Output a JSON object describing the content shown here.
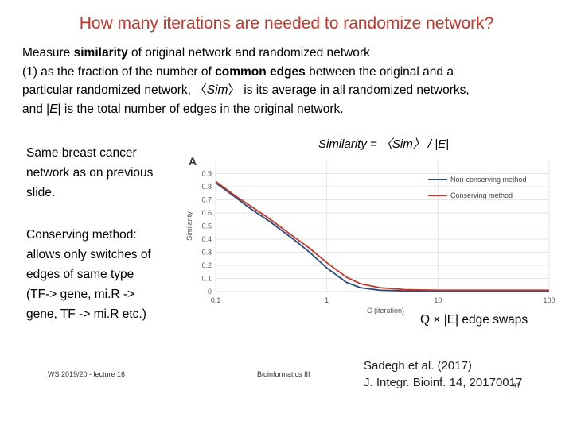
{
  "title": "How many iterations are needed to randomize network?",
  "intro": {
    "l1a": "Measure ",
    "l1b": "similarity",
    "l1c": " of original network and randomized network",
    "l2a": "(1) as the fraction of the number of ",
    "l2b": "common edges",
    "l2c": " between the original and a",
    "l3a": "particular randomized network, 〈",
    "l3b": "Sim",
    "l3c": "〉 is its average in all randomized networks,",
    "l4a": "and |",
    "l4b": "E",
    "l4c": "| is the total number of edges in the original network."
  },
  "note1": [
    "Same breast cancer",
    "network as on previous",
    "slide."
  ],
  "note2": [
    "Conserving method:",
    "allows only switches of",
    "edges of same type",
    "(TF-> gene, mi.R ->",
    "gene, TF -> mi.R etc.)"
  ],
  "formula": "Similarity = 〈Sim〉 / |E|",
  "swaps": "Q × |E| edge swaps",
  "reference": [
    "Sadegh et al. (2017)",
    "J. Integr. Bioinf. 14,  20170017"
  ],
  "footer": {
    "left": "WS 2019/20 - lecture 16",
    "center": "Bioinformatics III",
    "page": "37"
  },
  "chart_data": {
    "type": "line",
    "panel_label": "A",
    "xlabel": "C (iteration)",
    "ylabel": "Similarity",
    "xscale": "log",
    "xlim": [
      0.1,
      100
    ],
    "ylim": [
      0,
      1
    ],
    "x_ticks": [
      "0.1",
      "1",
      "10",
      "100"
    ],
    "y_ticks": [
      "0",
      "0.1",
      "0.2",
      "0.3",
      "0.4",
      "0.5",
      "0.6",
      "0.7",
      "0.8",
      "0.9"
    ],
    "grid": true,
    "legend_position": "top-right",
    "series": [
      {
        "name": "Non-conserving method",
        "color": "#2f4b7c",
        "points": [
          [
            0.1,
            0.83
          ],
          [
            0.15,
            0.72
          ],
          [
            0.2,
            0.64
          ],
          [
            0.3,
            0.54
          ],
          [
            0.5,
            0.4
          ],
          [
            0.7,
            0.3
          ],
          [
            1.0,
            0.18
          ],
          [
            1.5,
            0.07
          ],
          [
            2,
            0.03
          ],
          [
            3,
            0.01
          ],
          [
            5,
            0.005
          ],
          [
            10,
            0.003
          ],
          [
            30,
            0.003
          ],
          [
            100,
            0.003
          ]
        ]
      },
      {
        "name": "Conserving method",
        "color": "#c0392b",
        "points": [
          [
            0.1,
            0.84
          ],
          [
            0.15,
            0.73
          ],
          [
            0.2,
            0.66
          ],
          [
            0.3,
            0.56
          ],
          [
            0.5,
            0.42
          ],
          [
            0.7,
            0.33
          ],
          [
            1.0,
            0.22
          ],
          [
            1.5,
            0.11
          ],
          [
            2,
            0.06
          ],
          [
            3,
            0.03
          ],
          [
            5,
            0.015
          ],
          [
            10,
            0.01
          ],
          [
            30,
            0.01
          ],
          [
            100,
            0.01
          ]
        ]
      }
    ]
  }
}
